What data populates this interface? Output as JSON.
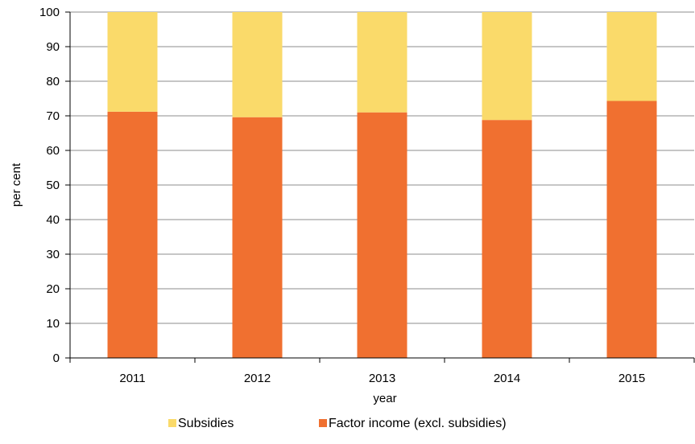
{
  "chart_data": {
    "type": "bar",
    "stacked": true,
    "percent_stacked": true,
    "categories": [
      "2011",
      "2012",
      "2013",
      "2014",
      "2015"
    ],
    "series": [
      {
        "name": "Factor income (excl. subsidies)",
        "values": [
          71.2,
          69.6,
          71.0,
          68.8,
          74.3
        ],
        "color": "#f07030"
      },
      {
        "name": "Subsidies",
        "values": [
          28.8,
          30.4,
          29.0,
          31.2,
          25.7
        ],
        "color": "#fada6a"
      }
    ],
    "yticks": [
      0,
      10,
      20,
      30,
      40,
      50,
      60,
      70,
      80,
      90,
      100
    ],
    "ylim": [
      0,
      100
    ],
    "xlabel": "year",
    "ylabel": "per cent",
    "grid": true,
    "legend_position": "bottom",
    "legend_order": [
      "Subsidies",
      "Factor income (excl. subsidies)"
    ]
  }
}
